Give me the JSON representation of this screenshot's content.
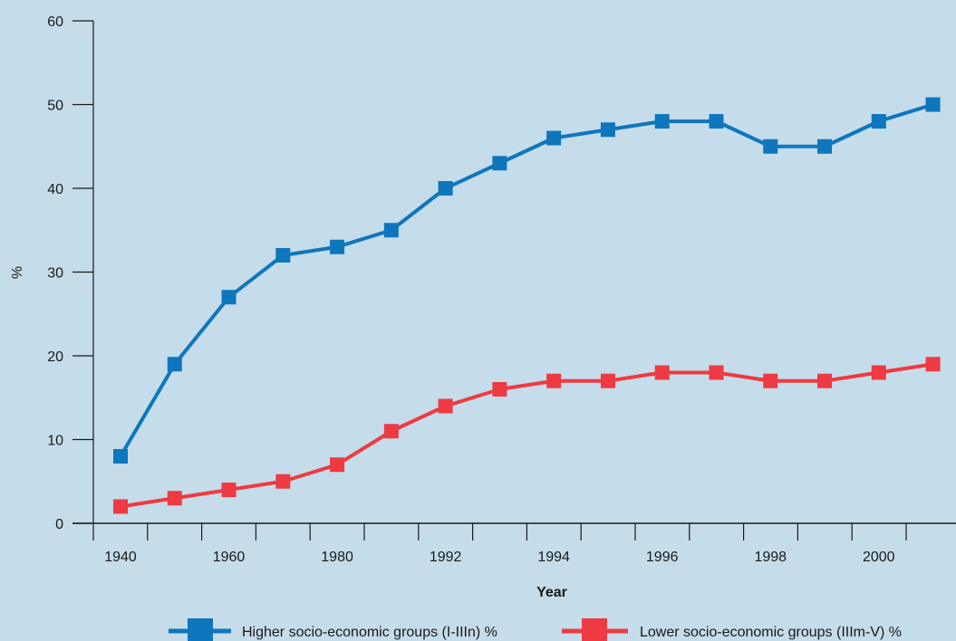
{
  "chart_data": {
    "type": "line",
    "title": "",
    "xlabel": "Year",
    "ylabel": "%",
    "categories": [
      "1940",
      "",
      "1960",
      "",
      "1980",
      "",
      "1992",
      "",
      "1994",
      "",
      "1996",
      "",
      "1998",
      "",
      "2000",
      ""
    ],
    "series": [
      {
        "name": "Higher socio-economic groups (I-IIIn) %",
        "color": "#0e76bc",
        "values": [
          8,
          19,
          27,
          32,
          33,
          35,
          40,
          43,
          46,
          47,
          48,
          48,
          45,
          45,
          48,
          50
        ]
      },
      {
        "name": "Lower socio-economic groups (IIIm-V) %",
        "color": "#ee3a42",
        "values": [
          2,
          3,
          4,
          5,
          7,
          11,
          14,
          16,
          17,
          17,
          18,
          18,
          17,
          17,
          18,
          19
        ]
      }
    ],
    "ylim": [
      0,
      60
    ],
    "yticks": [
      0,
      10,
      20,
      30,
      40,
      50,
      60
    ],
    "grid": false,
    "legend": "bottom"
  }
}
